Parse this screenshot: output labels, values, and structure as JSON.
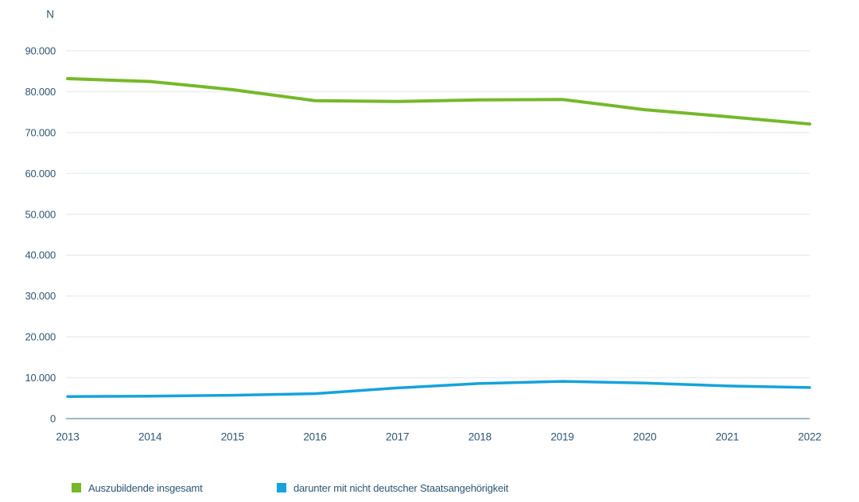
{
  "chart_data": {
    "type": "line",
    "title": "",
    "unit_label": "N",
    "xlabel": "",
    "ylabel": "N",
    "x": [
      "2013",
      "2014",
      "2015",
      "2016",
      "2017",
      "2018",
      "2019",
      "2020",
      "2021",
      "2022"
    ],
    "series": [
      {
        "name": "Auszubildende insgesamt",
        "slug": "auszubildende-insgesamt",
        "color": "#76b82a",
        "stroke_width": 4,
        "values": [
          83200,
          82500,
          80500,
          77800,
          77600,
          78000,
          78100,
          75600,
          73900,
          72100
        ]
      },
      {
        "name": "darunter mit nicht deutscher Staatsangehörigkeit",
        "slug": "nicht-deutsche-staatsangehoerigkeit",
        "color": "#16a2db",
        "stroke_width": 3.5,
        "values": [
          5400,
          5500,
          5700,
          6100,
          7500,
          8600,
          9100,
          8700,
          8000,
          7600
        ]
      }
    ],
    "y_ticks": [
      {
        "value": 0,
        "label": "0"
      },
      {
        "value": 10000,
        "label": "10.000"
      },
      {
        "value": 20000,
        "label": "20.000"
      },
      {
        "value": 30000,
        "label": "30.000"
      },
      {
        "value": 40000,
        "label": "40.000"
      },
      {
        "value": 50000,
        "label": "50.000"
      },
      {
        "value": 60000,
        "label": "60.000"
      },
      {
        "value": 70000,
        "label": "70.000"
      },
      {
        "value": 80000,
        "label": "80.000"
      },
      {
        "value": 90000,
        "label": "90.000"
      }
    ],
    "ylim": [
      0,
      90000
    ],
    "grid": true,
    "legend_position": "bottom",
    "colors": {
      "text": "#2d5676",
      "grid_line": "#eaedf1",
      "axis_line": "#a3b8c6",
      "background": "#ffffff"
    }
  }
}
